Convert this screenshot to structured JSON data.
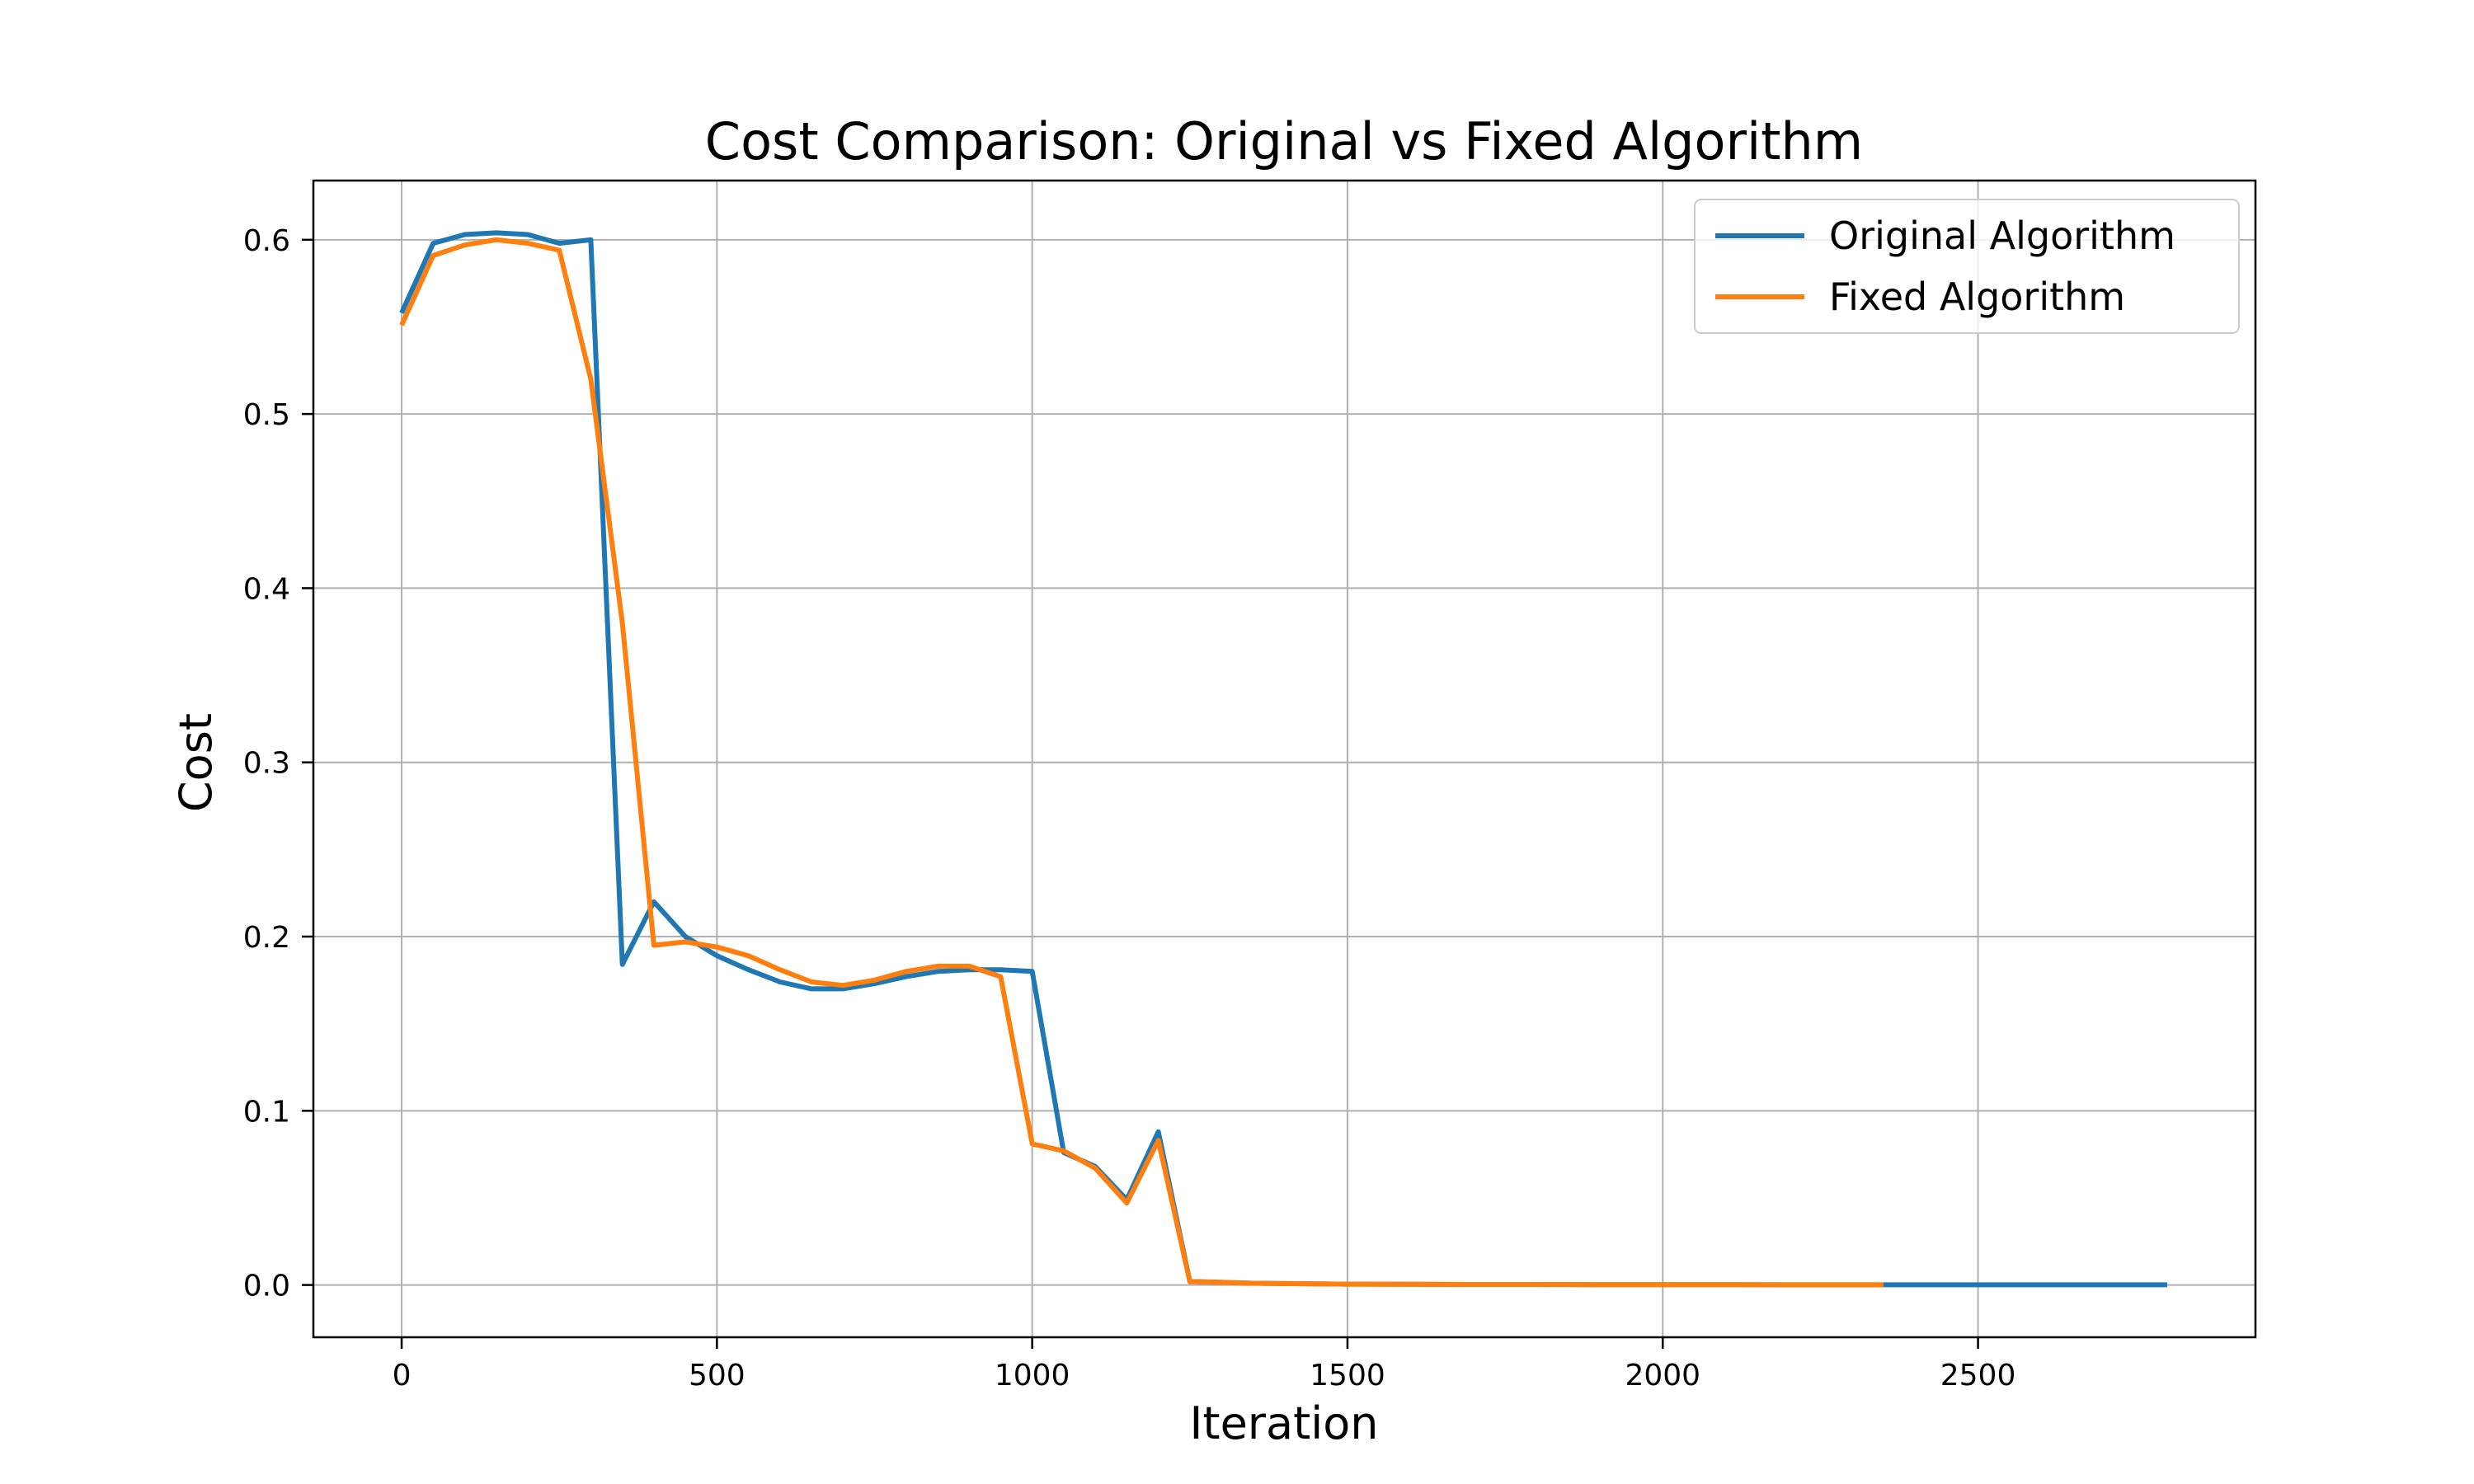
{
  "chart_data": {
    "type": "line",
    "title": "Cost Comparison: Original vs Fixed Algorithm",
    "xlabel": "Iteration",
    "ylabel": "Cost",
    "xlim": [
      -140,
      2940
    ],
    "ylim": [
      -0.03,
      0.634
    ],
    "xticks": [
      0,
      500,
      1000,
      1500,
      2000,
      2500
    ],
    "xtick_labels": [
      "0",
      "500",
      "1000",
      "1500",
      "2000",
      "2500"
    ],
    "yticks": [
      0.0,
      0.1,
      0.2,
      0.3,
      0.4,
      0.5,
      0.6
    ],
    "ytick_labels": [
      "0.0",
      "0.1",
      "0.2",
      "0.3",
      "0.4",
      "0.5",
      "0.6"
    ],
    "grid": true,
    "legend_position": "top-right",
    "series": [
      {
        "name": "Original Algorithm",
        "color": "#1f77b4",
        "x": [
          0,
          50,
          100,
          150,
          200,
          250,
          300,
          350,
          400,
          450,
          500,
          550,
          600,
          650,
          700,
          750,
          800,
          850,
          900,
          950,
          1000,
          1050,
          1100,
          1150,
          1200,
          1250,
          1300,
          1350,
          1400,
          1450,
          1500,
          1600,
          1700,
          1800,
          1900,
          2000,
          2100,
          2200,
          2300,
          2400,
          2500,
          2600,
          2700,
          2800
        ],
        "values": [
          0.558,
          0.598,
          0.603,
          0.604,
          0.603,
          0.598,
          0.6,
          0.184,
          0.22,
          0.2,
          0.189,
          0.181,
          0.174,
          0.17,
          0.17,
          0.173,
          0.177,
          0.18,
          0.181,
          0.181,
          0.18,
          0.076,
          0.068,
          0.049,
          0.088,
          0.002,
          0.0015,
          0.001,
          0.0008,
          0.0006,
          0.0005,
          0.0004,
          0.0003,
          0.0003,
          0.0002,
          0.0002,
          0.0002,
          0.0001,
          0.0001,
          0.0001,
          0.0001,
          0.0001,
          0.0001,
          0.0001
        ]
      },
      {
        "name": "Fixed Algorithm",
        "color": "#ff7f0e",
        "x": [
          0,
          50,
          100,
          150,
          200,
          250,
          300,
          350,
          400,
          450,
          500,
          550,
          600,
          650,
          700,
          750,
          800,
          850,
          900,
          950,
          1000,
          1050,
          1100,
          1150,
          1200,
          1250,
          1300,
          1350,
          1400,
          1450,
          1500,
          1600,
          1700,
          1800,
          1900,
          2000,
          2100,
          2200,
          2350
        ],
        "values": [
          0.551,
          0.591,
          0.597,
          0.6,
          0.598,
          0.594,
          0.52,
          0.38,
          0.195,
          0.197,
          0.194,
          0.189,
          0.181,
          0.174,
          0.172,
          0.175,
          0.18,
          0.183,
          0.183,
          0.177,
          0.081,
          0.077,
          0.067,
          0.047,
          0.083,
          0.002,
          0.0015,
          0.001,
          0.0008,
          0.0006,
          0.0005,
          0.0004,
          0.0003,
          0.0003,
          0.0002,
          0.0002,
          0.0002,
          0.0001,
          0.0001
        ]
      }
    ]
  }
}
